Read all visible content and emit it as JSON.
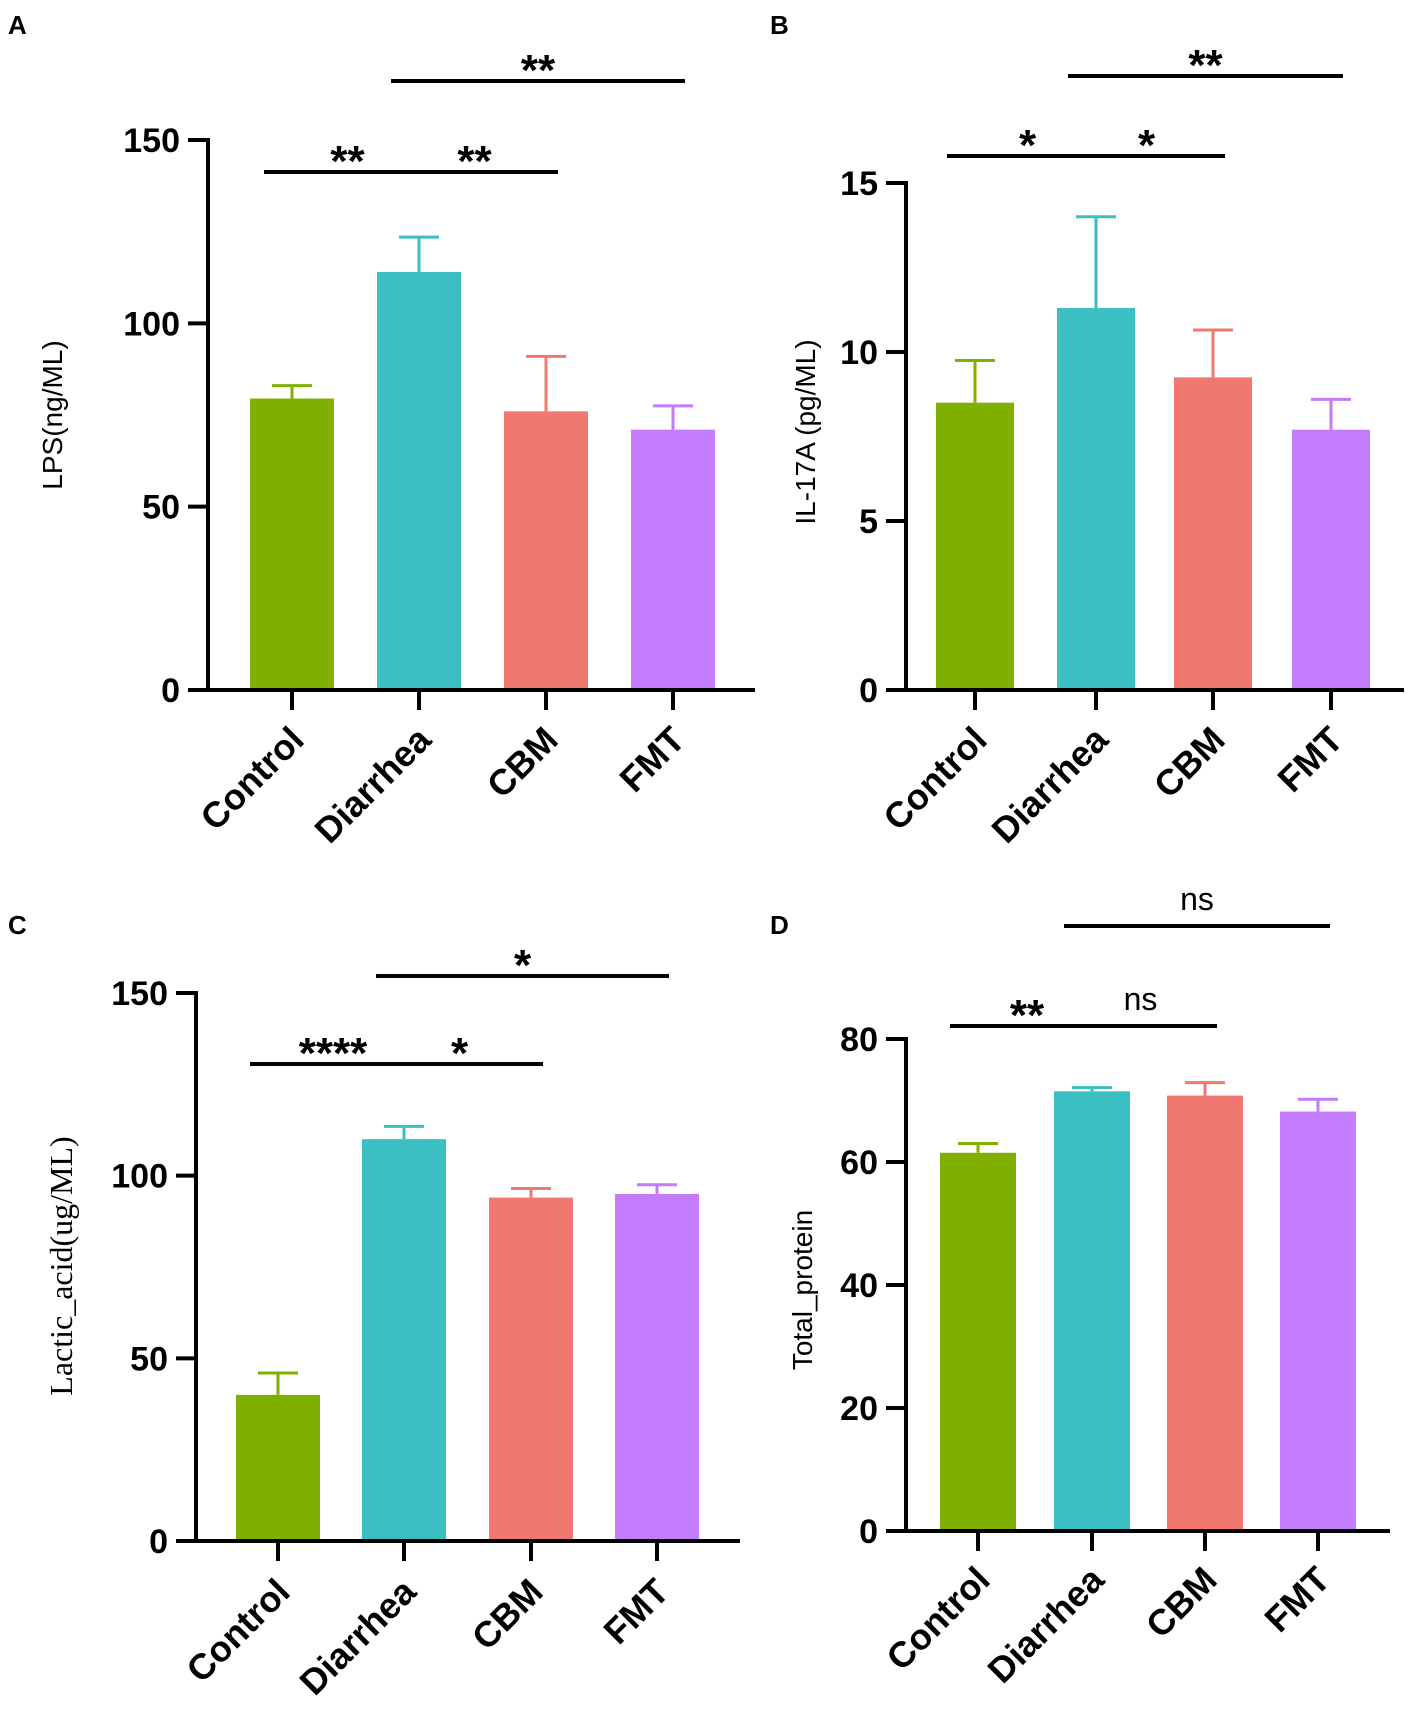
{
  "colors": {
    "Control": "#7fb000",
    "Diarrhea": "#3bbfc2",
    "CBM": "#f17871",
    "FMT": "#c27cfc",
    "axis": "#000000"
  },
  "chart_data": [
    {
      "panel": "A",
      "type": "bar",
      "categories": [
        "Control",
        "Diarrhea",
        "CBM",
        "FMT"
      ],
      "values": [
        79.5,
        114,
        76,
        71
      ],
      "errors": [
        3.5,
        9.5,
        15,
        6.5
      ],
      "ylabel": "LPS(ng/ML)",
      "ylim": [
        0,
        150
      ],
      "yticks": [
        0,
        50,
        100,
        150
      ],
      "ytick_labels": [
        "0",
        "50",
        "100",
        "150"
      ],
      "significance": [
        {
          "from": 0,
          "to": 1,
          "label": "**",
          "level": 0
        },
        {
          "from": 1,
          "to": 2,
          "label": "**",
          "level": 0
        },
        {
          "from": 1,
          "to": 3,
          "label": "**",
          "level": 1
        }
      ]
    },
    {
      "panel": "B",
      "type": "bar",
      "categories": [
        "Control",
        "Diarrhea",
        "CBM",
        "FMT"
      ],
      "values": [
        8.5,
        11.3,
        9.25,
        7.7
      ],
      "errors": [
        1.25,
        2.7,
        1.4,
        0.9
      ],
      "ylabel": "IL-17A (pg/ML)",
      "ylim": [
        0,
        15
      ],
      "yticks": [
        0,
        5,
        10,
        15
      ],
      "ytick_labels": [
        "0",
        "5",
        "10",
        "15"
      ],
      "significance": [
        {
          "from": 0,
          "to": 1,
          "label": "*",
          "level": 0
        },
        {
          "from": 1,
          "to": 2,
          "label": "*",
          "level": 0
        },
        {
          "from": 1,
          "to": 3,
          "label": "**",
          "level": 1
        }
      ]
    },
    {
      "panel": "C",
      "type": "bar",
      "categories": [
        "Control",
        "Diarrhea",
        "CBM",
        "FMT"
      ],
      "values": [
        40,
        110,
        94,
        95
      ],
      "errors": [
        6,
        3.5,
        2.5,
        2.5
      ],
      "ylabel": "Lactic_acid(ug/ML)",
      "ylim": [
        0,
        150
      ],
      "yticks": [
        0,
        50,
        100,
        150
      ],
      "ytick_labels": [
        "0",
        "50",
        "100",
        "150"
      ],
      "significance": [
        {
          "from": 0,
          "to": 1,
          "label": "****",
          "level": 0
        },
        {
          "from": 1,
          "to": 2,
          "label": "*",
          "level": 0
        },
        {
          "from": 1,
          "to": 3,
          "label": "*",
          "level": 1
        }
      ]
    },
    {
      "panel": "D",
      "type": "bar",
      "categories": [
        "Control",
        "Diarrhea",
        "CBM",
        "FMT"
      ],
      "values": [
        61.5,
        71.5,
        70.8,
        68.2
      ],
      "errors": [
        1.5,
        0.6,
        2.1,
        2.0
      ],
      "ylabel": "Total_protein",
      "ylim": [
        0,
        80
      ],
      "yticks": [
        0,
        20,
        40,
        60,
        80
      ],
      "ytick_labels": [
        "0",
        "20",
        "40",
        "60",
        "80"
      ],
      "significance": [
        {
          "from": 0,
          "to": 1,
          "label": "**",
          "level": 0
        },
        {
          "from": 1,
          "to": 2,
          "label": "ns",
          "level": 0
        },
        {
          "from": 1,
          "to": 3,
          "label": "ns",
          "level": 1
        }
      ]
    }
  ]
}
